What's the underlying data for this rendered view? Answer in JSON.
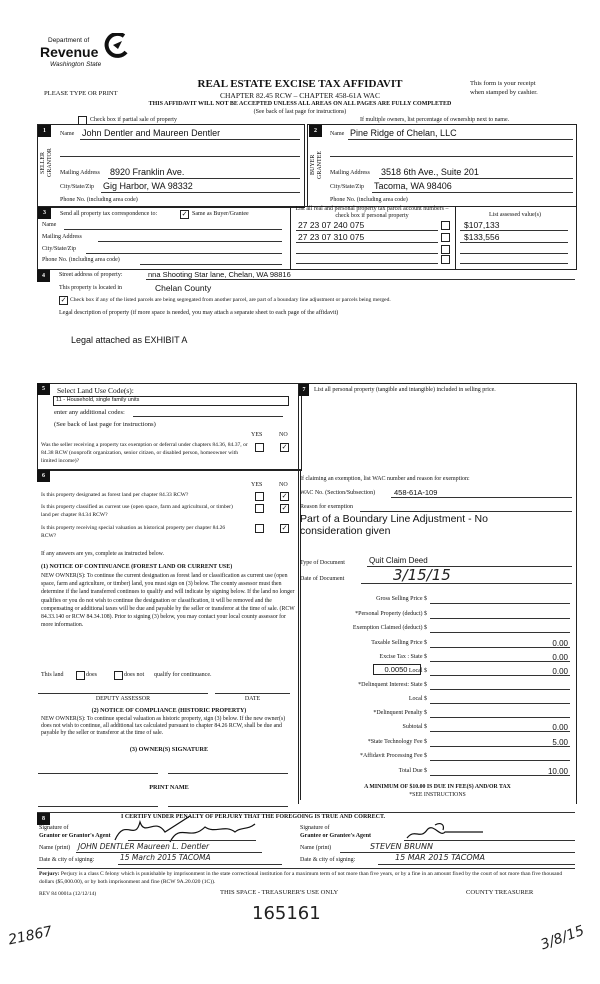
{
  "logo": {
    "line1": "Department of",
    "line2": "Revenue",
    "line3": "Washington State"
  },
  "header": {
    "please": "PLEASE TYPE OR PRINT",
    "title": "REAL ESTATE EXCISE TAX AFFIDAVIT",
    "chapter": "CHAPTER 82.45 RCW – CHAPTER 458-61A WAC",
    "receipt1": "This form is your receipt",
    "receipt2": "when stamped by cashier.",
    "warning": "THIS AFFIDAVIT WILL NOT BE ACCEPTED UNLESS ALL AREAS ON ALL PAGES ARE FULLY COMPLETED",
    "see_back": "(See back of last page for instructions)",
    "partial_label": "Check box if partial sale of property",
    "partial_checked": false,
    "multiple": "If multiple owners, list percentage of ownership next to name."
  },
  "seller": {
    "num": "1",
    "side": "SELLER GRANTOR",
    "name_label": "Name",
    "name": "John Dentler and Maureen Dentler",
    "addr_label": "Mailing Address",
    "addr": "8920 Franklin Ave.",
    "city_label": "City/State/Zip",
    "city": "Gig Harbor, WA 98332",
    "phone_label": "Phone No. (including area code)"
  },
  "buyer": {
    "num": "2",
    "side": "BUYER GRANTEE",
    "name_label": "Name",
    "name": "Pine Ridge of Chelan, LLC",
    "addr_label": "Mailing Address",
    "addr": "3518 6th Ave., Suite 201",
    "city_label": "City/State/Zip",
    "city": "Tacoma, WA 98406",
    "phone_label": "Phone No. (including area code)"
  },
  "section3": {
    "num": "3",
    "send_label": "Send all property tax correspondence to:",
    "same_label": "Same as Buyer/Grantee",
    "same_checked": true,
    "name_label": "Name",
    "addr_label": "Mailing Address",
    "city_label": "City/State/Zip",
    "phone_label": "Phone No. (including area code)",
    "parcels_header": "List all real and personal property tax parcel account numbers – check box if personal property",
    "values_header": "List assessed value(s)",
    "parcels": [
      {
        "number": "27 23 07 240 075",
        "personal": false,
        "value": "$107,133"
      },
      {
        "number": "27 23 07 310 075",
        "personal": false,
        "value": "$133,556"
      },
      {
        "number": "",
        "personal": false,
        "value": ""
      },
      {
        "number": "",
        "personal": false,
        "value": ""
      }
    ]
  },
  "section4": {
    "num": "4",
    "street_label": "Street address of property:",
    "street": "nna Shooting Star lane, Chelan, WA 98816",
    "located_label": "This property is located in",
    "located": "Chelan County",
    "segregated_label": "Check box if any of the listed parcels are being segregated from another parcel, are part of a boundary line adjustment or parcels being merged.",
    "segregated_checked": true,
    "legal_label": "Legal description of property (if more space is needed, you may attach a separate sheet to each page of the affidavit)",
    "legal": "Legal attached as EXHIBIT A"
  },
  "section5": {
    "num": "5",
    "select_label": "Select Land Use Code(s):",
    "code": "11 - Household, single family units",
    "additional_label": "enter any additional codes:",
    "see_back": "(See back of last page for instructions)",
    "yes": "YES",
    "no": "NO",
    "question": "Was the seller receiving a property tax exemption or deferral under chapters 84.36, 84.37, or 84.38 RCW (nonprofit organization, senior citizen, or disabled person, homeowner with limited income)?",
    "answer_yes": false,
    "answer_no": true
  },
  "section6": {
    "num": "6",
    "yes": "YES",
    "no": "NO",
    "questions": [
      {
        "text": "Is this property designated as forest land per chapter 84.33 RCW?",
        "yes": false,
        "no": true
      },
      {
        "text": "Is this property classified as current use (open space, farm and agricultural, or timber) land per chapter 84.34 RCW?",
        "yes": false,
        "no": true
      },
      {
        "text": "Is this property receiving special valuation as historical property per chapter 84.26 RCW?",
        "yes": false,
        "no": true
      }
    ],
    "if_yes": "If any answers are yes, complete as instructed below.",
    "notice1_title": "(1) NOTICE OF CONTINUANCE  (FOREST LAND OR CURRENT USE)",
    "notice1_text": "NEW OWNER(S): To continue the current designation as forest land or classification as current use (open space, farm and agriculture, or timber) land, you must sign on (3) below. The county assessor must then determine if the land transferred continues to qualify and will indicate by signing below. If the land no longer qualifies or you do not wish to continue the designation or classification, it will be removed and the compensating or additional taxes will be due and payable by the seller or transferor at the time of sale. (RCW 84.33.140 or RCW 84.34.108). Prior to signing (3) below, you may contact your local county assessor for more information.",
    "this_land": "This land",
    "does": "does",
    "does_not": "does not",
    "qualify": "qualify for continuance.",
    "does_checked": false,
    "does_not_checked": false,
    "deputy": "DEPUTY ASSESSOR",
    "date": "DATE",
    "notice2_title": "(2) NOTICE OF COMPLIANCE (HISTORIC PROPERTY)",
    "notice2_text": "NEW OWNER(S): To continue special valuation as historic property, sign (3) below. If the new owner(s) does not wish to continue, all additional tax calculated pursuant to chapter 84.26 RCW, shall be due and payable by the seller or transferor at the time of sale.",
    "owner_sig": "(3) OWNER(S) SIGNATURE",
    "print_name": "PRINT NAME"
  },
  "section7": {
    "num": "7",
    "personal_label": "List all  personal property (tangible and intangible) included in selling price.",
    "exemption_label": "If claiming an exemption, list WAC number and reason for exemption:",
    "wac_label": "WAC No. (Section/Subsection)",
    "wac": "458-61A-109",
    "reason_label": "Reason for exemption",
    "reason": "Part of a Boundary Line Adjustment - No consideration given",
    "type_label": "Type of Document",
    "type": "Quit Claim Deed",
    "date_label": "Date of Document",
    "date": "3/15/15",
    "local_rate": "0.0050",
    "fees": [
      {
        "label": "Gross Selling Price $",
        "value": ""
      },
      {
        "label": "*Personal Property (deduct) $",
        "value": ""
      },
      {
        "label": "Exemption Claimed (deduct) $",
        "value": ""
      },
      {
        "label": "Taxable Selling Price $",
        "value": "0.00"
      },
      {
        "label": "Excise Tax : State $",
        "value": "0.00"
      },
      {
        "label": "Local $",
        "value": "0.00"
      },
      {
        "label": "*Delinquent Interest: State $",
        "value": ""
      },
      {
        "label": "Local $",
        "value": ""
      },
      {
        "label": "*Delinquent Penalty $",
        "value": ""
      },
      {
        "label": "Subtotal $",
        "value": "0.00"
      },
      {
        "label": "*State Technology Fee $",
        "value": "5.00"
      },
      {
        "label": "*Affidavit Processing Fee $",
        "value": ""
      },
      {
        "label": "Total Due $",
        "value": "10.00"
      }
    ],
    "minimum": "A MINIMUM OF $10.00 IS DUE IN FEE(S) AND/OR TAX",
    "see_instr": "*SEE INSTRUCTIONS"
  },
  "section8": {
    "num": "8",
    "certify": "I CERTIFY UNDER PENALTY OF PERJURY THAT THE FOREGOING IS TRUE AND CORRECT.",
    "grantor_sig_label1": "Signature of",
    "grantor_sig_label2": "Grantor or Grantor's Agent",
    "grantor_name_label": "Name (print)",
    "grantor_name": "JOHN DENTLER    Maureen L. Dentler",
    "grantor_date_label": "Date & city of signing:",
    "grantor_date": "15 March 2015   TACOMA",
    "grantee_sig_label1": "Signature of",
    "grantee_sig_label2": "Grantee or Grantee's Agent",
    "grantee_name_label": "Name (print)",
    "grantee_name": "STEVEN BRUNN",
    "grantee_date_label": "Date & city of signing:",
    "grantee_date": "15 MAR 2015   TACOMA"
  },
  "footer": {
    "perjury_label": "Perjury:",
    "perjury": "Perjury is a class C felony which is punishable by imprisonment in the state correctional institution for a maximum term of not more than five years, or by a fine in an amount fixed by the court of not more than five thousand dollars ($5,000.00), or by both imprisonment and fine (RCW 9A.20.020 (1C)).",
    "rev": "REV 84 0001a (12/12/14)",
    "treasurer_use": "THIS SPACE - TREASURER'S USE ONLY",
    "county_treasurer": "COUNTY TREASURER",
    "stamp_number": "165161",
    "note_left": "21867",
    "note_right": "3/8/15"
  }
}
